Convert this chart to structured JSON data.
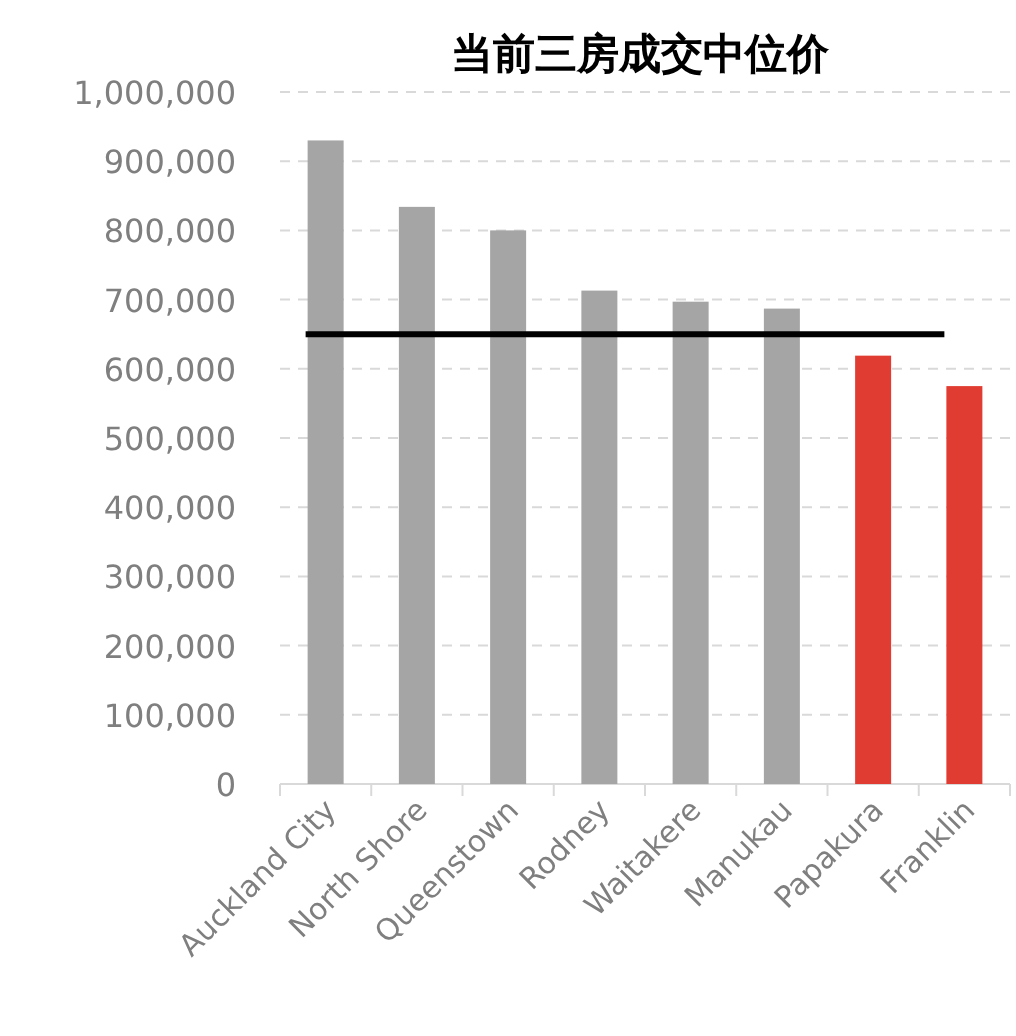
{
  "chart_data": {
    "type": "bar",
    "title": "当前三房成交中位价",
    "categories": [
      "Auckland City",
      "North Shore",
      "Queenstown",
      "Rodney",
      "Waitakere",
      "Manukau",
      "Papakura",
      "Franklin"
    ],
    "values": [
      930000,
      834000,
      800000,
      713000,
      697000,
      687000,
      619000,
      575000
    ],
    "colors": [
      "#a5a5a5",
      "#a5a5a5",
      "#a5a5a5",
      "#a5a5a5",
      "#a5a5a5",
      "#a5a5a5",
      "#e03c31",
      "#e03c31"
    ],
    "ylim": [
      0,
      1000000
    ],
    "yticks": [
      0,
      {
        "value": 100000,
        "label": "100,000"
      },
      {
        "value": 200000,
        "label": "200,000"
      },
      {
        "value": 300000,
        "label": "300,000"
      },
      {
        "value": 400000,
        "label": "400,000"
      },
      {
        "value": 500000,
        "label": "500,000"
      },
      {
        "value": 600000,
        "label": "600,000"
      },
      {
        "value": 700000,
        "label": "700,000"
      },
      {
        "value": 800000,
        "label": "800,000"
      },
      {
        "value": 900000,
        "label": "900,000"
      },
      {
        "value": 1000000,
        "label": "1,000,000"
      }
    ],
    "ref_lines": [
      {
        "axis": "y",
        "value": 650000,
        "color": "#000000"
      }
    ],
    "grid": "y"
  }
}
